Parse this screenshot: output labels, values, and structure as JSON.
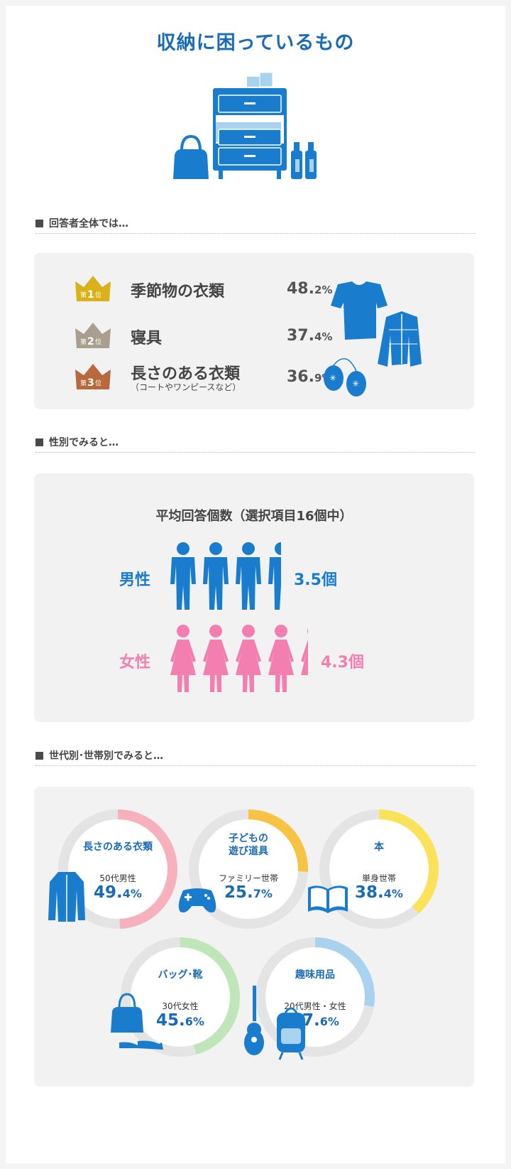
{
  "title": "収納に困っているもの",
  "sections": {
    "overall": "回答者全体では…",
    "gender": "性別でみると…",
    "generation": "世代別･世帯別でみると…"
  },
  "ranking": [
    {
      "badge_pre": "第",
      "badge_num": "1",
      "badge_post": "位",
      "label": "季節物の衣類",
      "sub": "",
      "value": "48.",
      "value_dec": "2%",
      "color": "#d9b21a"
    },
    {
      "badge_pre": "第",
      "badge_num": "2",
      "badge_post": "位",
      "label": "寝具",
      "sub": "",
      "value": "37.",
      "value_dec": "4%",
      "color": "#a89f8e"
    },
    {
      "badge_pre": "第",
      "badge_num": "3",
      "badge_post": "位",
      "label": "長さのある衣類",
      "sub": "（コートやワンピースなど）",
      "value": "36.",
      "value_dec": "9%",
      "color": "#b86a3e"
    }
  ],
  "gender": {
    "title": "平均回答個数（選択項目16個中）",
    "male": {
      "label": "男性",
      "value": "3.5個",
      "count": 3.5,
      "color": "#1a7ccc"
    },
    "female": {
      "label": "女性",
      "value": "4.3個",
      "count": 4.3,
      "color": "#f27fb0"
    }
  },
  "generation": [
    {
      "label1": "長さのある衣類",
      "label2": "",
      "sub": "50代男性",
      "value": "49.",
      "value_dec": "4%",
      "pct": 49.4,
      "color": "#f6b1bd",
      "icon": "coat-icon"
    },
    {
      "label1": "子どもの",
      "label2": "遊び道具",
      "sub": "ファミリー世帯",
      "value": "25.",
      "value_dec": "7%",
      "pct": 25.7,
      "color": "#f8c243",
      "icon": "gamepad-icon"
    },
    {
      "label1": "本",
      "label2": "",
      "sub": "単身世帯",
      "value": "38.",
      "value_dec": "4%",
      "pct": 38.4,
      "color": "#fbe25b",
      "icon": "book-icon"
    },
    {
      "label1": "バッグ･靴",
      "label2": "",
      "sub": "30代女性",
      "value": "45.",
      "value_dec": "6%",
      "pct": 45.6,
      "color": "#bfe6b8",
      "icon": "bag-shoes-icon"
    },
    {
      "label1": "趣味用品",
      "label2": "",
      "sub": "20代男性・女性",
      "value": "27.",
      "value_dec": "6%",
      "pct": 27.6,
      "color": "#a9d2ee",
      "icon": "guitar-backpack-icon"
    }
  ],
  "colors": {
    "primary": "#1a6bb5",
    "panel": "#f2f2f2",
    "ring_track": "#e4e4e4"
  }
}
